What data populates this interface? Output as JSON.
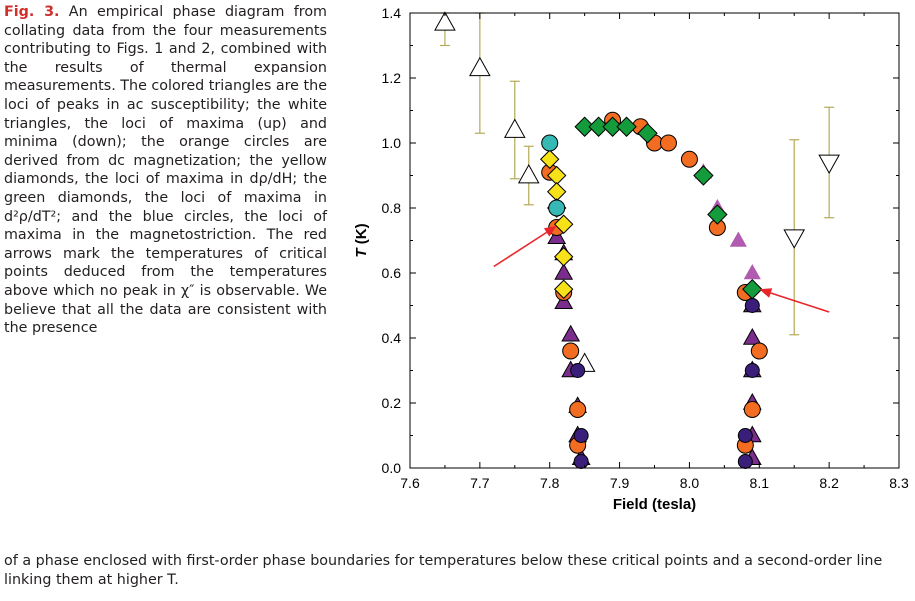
{
  "caption": {
    "label": "Fig. 3.",
    "text_left": " An empirical phase diagram from collating data from the four measurements contributing to Figs. 1 and 2, combined with the results of thermal expansion measurements. The colored triangles are the loci of peaks in ac susceptibility; the white triangles, the loci of maxima (up) and minima (down); the orange circles are derived from dc magnetization; the yellow diamonds, the loci of maxima in dρ/dH; the green diamonds, the loci of maxima in d²ρ/dT²; and the blue circles, the loci of maxima in the magnetostriction. The red arrows mark the temperatures of critical points deduced from the temperatures above which no peak in χ″ is observable. We believe that all the data are consistent with the presence",
    "text_bottom": "of a phase enclosed with first-order phase boundaries for temperatures below these critical points and a second-order line linking them at higher T."
  },
  "colors": {
    "orange": "#f26c21",
    "purple": "#7b2d8e",
    "magenta": "#b05bb0",
    "yellow": "#f7e21a",
    "green": "#149b3c",
    "cyan": "#36b9b4",
    "navy": "#3a1f7a",
    "errorbar": "#b5aa55",
    "arrow": "#e8262a"
  },
  "chart_data": {
    "type": "scatter",
    "xlabel": "Field (tesla)",
    "ylabel": "T (K)",
    "xlim": [
      7.6,
      8.3
    ],
    "ylim": [
      0.0,
      1.4
    ],
    "xticks": [
      "7.6",
      "7.7",
      "7.8",
      "7.9",
      "8.0",
      "8.1",
      "8.2",
      "8.3"
    ],
    "yticks": [
      "0.0",
      "0.2",
      "0.4",
      "0.6",
      "0.8",
      "1.0",
      "1.2",
      "1.4"
    ],
    "grid": false,
    "series": [
      {
        "marker": "triangle-up-white",
        "points": [
          {
            "x": 7.65,
            "y": 1.37,
            "err": [
              1.3,
              1.4
            ]
          },
          {
            "x": 7.7,
            "y": 1.23,
            "err": [
              1.03,
              1.4
            ]
          },
          {
            "x": 7.75,
            "y": 1.04,
            "err": [
              0.89,
              1.19
            ]
          },
          {
            "x": 7.77,
            "y": 0.9,
            "err": [
              0.81,
              0.99
            ]
          },
          {
            "x": 7.85,
            "y": 0.32,
            "err": null
          }
        ]
      },
      {
        "marker": "triangle-down-white",
        "points": [
          {
            "x": 8.15,
            "y": 0.71,
            "err": [
              0.41,
              1.01
            ]
          },
          {
            "x": 8.2,
            "y": 0.94,
            "err": [
              0.77,
              1.11
            ]
          }
        ]
      },
      {
        "marker": "triangle-purple",
        "points": [
          {
            "x": 7.81,
            "y": 0.71
          },
          {
            "x": 7.82,
            "y": 0.66
          },
          {
            "x": 7.82,
            "y": 0.6
          },
          {
            "x": 7.82,
            "y": 0.51
          },
          {
            "x": 7.83,
            "y": 0.41
          },
          {
            "x": 7.83,
            "y": 0.3
          },
          {
            "x": 7.84,
            "y": 0.19
          },
          {
            "x": 7.84,
            "y": 0.1
          },
          {
            "x": 7.845,
            "y": 0.03
          },
          {
            "x": 8.09,
            "y": 0.5
          },
          {
            "x": 8.09,
            "y": 0.4
          },
          {
            "x": 8.09,
            "y": 0.3
          },
          {
            "x": 8.09,
            "y": 0.2
          },
          {
            "x": 8.09,
            "y": 0.1
          },
          {
            "x": 8.09,
            "y": 0.03
          }
        ]
      },
      {
        "marker": "triangle-magenta",
        "points": [
          {
            "x": 8.02,
            "y": 0.91
          },
          {
            "x": 8.04,
            "y": 0.8
          },
          {
            "x": 8.07,
            "y": 0.7
          },
          {
            "x": 8.09,
            "y": 0.6
          }
        ]
      },
      {
        "marker": "circle-orange",
        "points": [
          {
            "x": 7.8,
            "y": 0.91
          },
          {
            "x": 7.81,
            "y": 0.74
          },
          {
            "x": 7.82,
            "y": 0.54
          },
          {
            "x": 7.83,
            "y": 0.36
          },
          {
            "x": 7.84,
            "y": 0.18
          },
          {
            "x": 7.84,
            "y": 0.07
          },
          {
            "x": 7.89,
            "y": 1.07
          },
          {
            "x": 7.93,
            "y": 1.05
          },
          {
            "x": 7.95,
            "y": 1.0
          },
          {
            "x": 7.97,
            "y": 1.0
          },
          {
            "x": 8.0,
            "y": 0.95
          },
          {
            "x": 8.04,
            "y": 0.74
          },
          {
            "x": 8.08,
            "y": 0.54
          },
          {
            "x": 8.1,
            "y": 0.36
          },
          {
            "x": 8.09,
            "y": 0.18
          },
          {
            "x": 8.08,
            "y": 0.07
          }
        ]
      },
      {
        "marker": "diamond-yellow",
        "points": [
          {
            "x": 7.8,
            "y": 0.95
          },
          {
            "x": 7.81,
            "y": 0.9
          },
          {
            "x": 7.81,
            "y": 0.85
          },
          {
            "x": 7.81,
            "y": 0.8
          },
          {
            "x": 7.82,
            "y": 0.75
          },
          {
            "x": 7.82,
            "y": 0.65
          },
          {
            "x": 7.82,
            "y": 0.55
          }
        ]
      },
      {
        "marker": "diamond-green",
        "points": [
          {
            "x": 7.85,
            "y": 1.05
          },
          {
            "x": 7.87,
            "y": 1.05
          },
          {
            "x": 7.89,
            "y": 1.05
          },
          {
            "x": 7.91,
            "y": 1.05
          },
          {
            "x": 7.94,
            "y": 1.03
          },
          {
            "x": 8.02,
            "y": 0.9
          },
          {
            "x": 8.04,
            "y": 0.78
          },
          {
            "x": 8.09,
            "y": 0.55
          }
        ]
      },
      {
        "marker": "circle-cyan",
        "points": [
          {
            "x": 7.8,
            "y": 1.0
          },
          {
            "x": 7.81,
            "y": 0.8
          }
        ]
      },
      {
        "marker": "circle-navy",
        "points": [
          {
            "x": 7.84,
            "y": 0.3
          },
          {
            "x": 7.845,
            "y": 0.1
          },
          {
            "x": 7.845,
            "y": 0.02
          },
          {
            "x": 8.09,
            "y": 0.5
          },
          {
            "x": 8.09,
            "y": 0.3
          },
          {
            "x": 8.08,
            "y": 0.1
          },
          {
            "x": 8.08,
            "y": 0.02
          }
        ]
      }
    ],
    "arrows": [
      {
        "from": [
          7.72,
          0.62
        ],
        "to": [
          7.81,
          0.745
        ]
      },
      {
        "from": [
          8.2,
          0.48
        ],
        "to": [
          8.1,
          0.55
        ]
      }
    ]
  }
}
